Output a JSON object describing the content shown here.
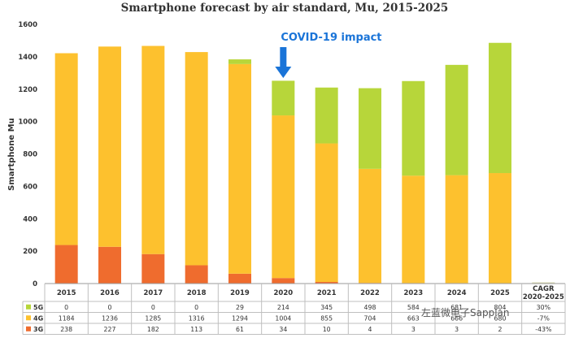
{
  "chart_data": {
    "type": "bar",
    "stacked": true,
    "title": "Smartphone forecast by air standard, Mu, 2015-2025",
    "xlabel": "",
    "ylabel": "Smartphone Mu",
    "ylim": [
      0,
      1600
    ],
    "yticks": [
      "0",
      "200",
      "400",
      "600",
      "800",
      "1000",
      "1200",
      "1400",
      "1600"
    ],
    "categories": [
      "2015",
      "2016",
      "2017",
      "2018",
      "2019",
      "2020",
      "2021",
      "2022",
      "2023",
      "2024",
      "2025"
    ],
    "extra_column_label": [
      "CAGR",
      "2020-2025"
    ],
    "series": [
      {
        "name": "5G",
        "color": "#b7d63a",
        "values": [
          0,
          0,
          0,
          0,
          29,
          214,
          345,
          498,
          584,
          681,
          804
        ],
        "table": [
          "0",
          "0",
          "0",
          "0",
          "29",
          "214",
          "345",
          "498",
          "584",
          "681",
          "804"
        ],
        "cagr": "30%"
      },
      {
        "name": "4G",
        "color": "#fdc12e",
        "values": [
          1184,
          1236,
          1285,
          1316,
          1294,
          1004,
          855,
          704,
          663,
          666,
          680
        ],
        "table": [
          "1184",
          "1236",
          "1285",
          "1316",
          "1294",
          "1004",
          "855",
          "704",
          "663",
          "666",
          "680"
        ],
        "cagr": "-7%"
      },
      {
        "name": "3G",
        "color": "#ef6c2e",
        "values": [
          238,
          227,
          182,
          113,
          61,
          34,
          10,
          4,
          3,
          3,
          2
        ],
        "table": [
          "238",
          "227",
          "182",
          "113",
          "61",
          "34",
          "10",
          "4",
          "3",
          "3",
          "2"
        ],
        "cagr": "-43%"
      }
    ],
    "annotations": [
      {
        "text": "COVID-19 impact",
        "category": "2020",
        "color": "#1a74d8"
      }
    ],
    "grid": false,
    "legend": "table-bottom"
  },
  "watermark": "左蓝微电子Sapplan"
}
